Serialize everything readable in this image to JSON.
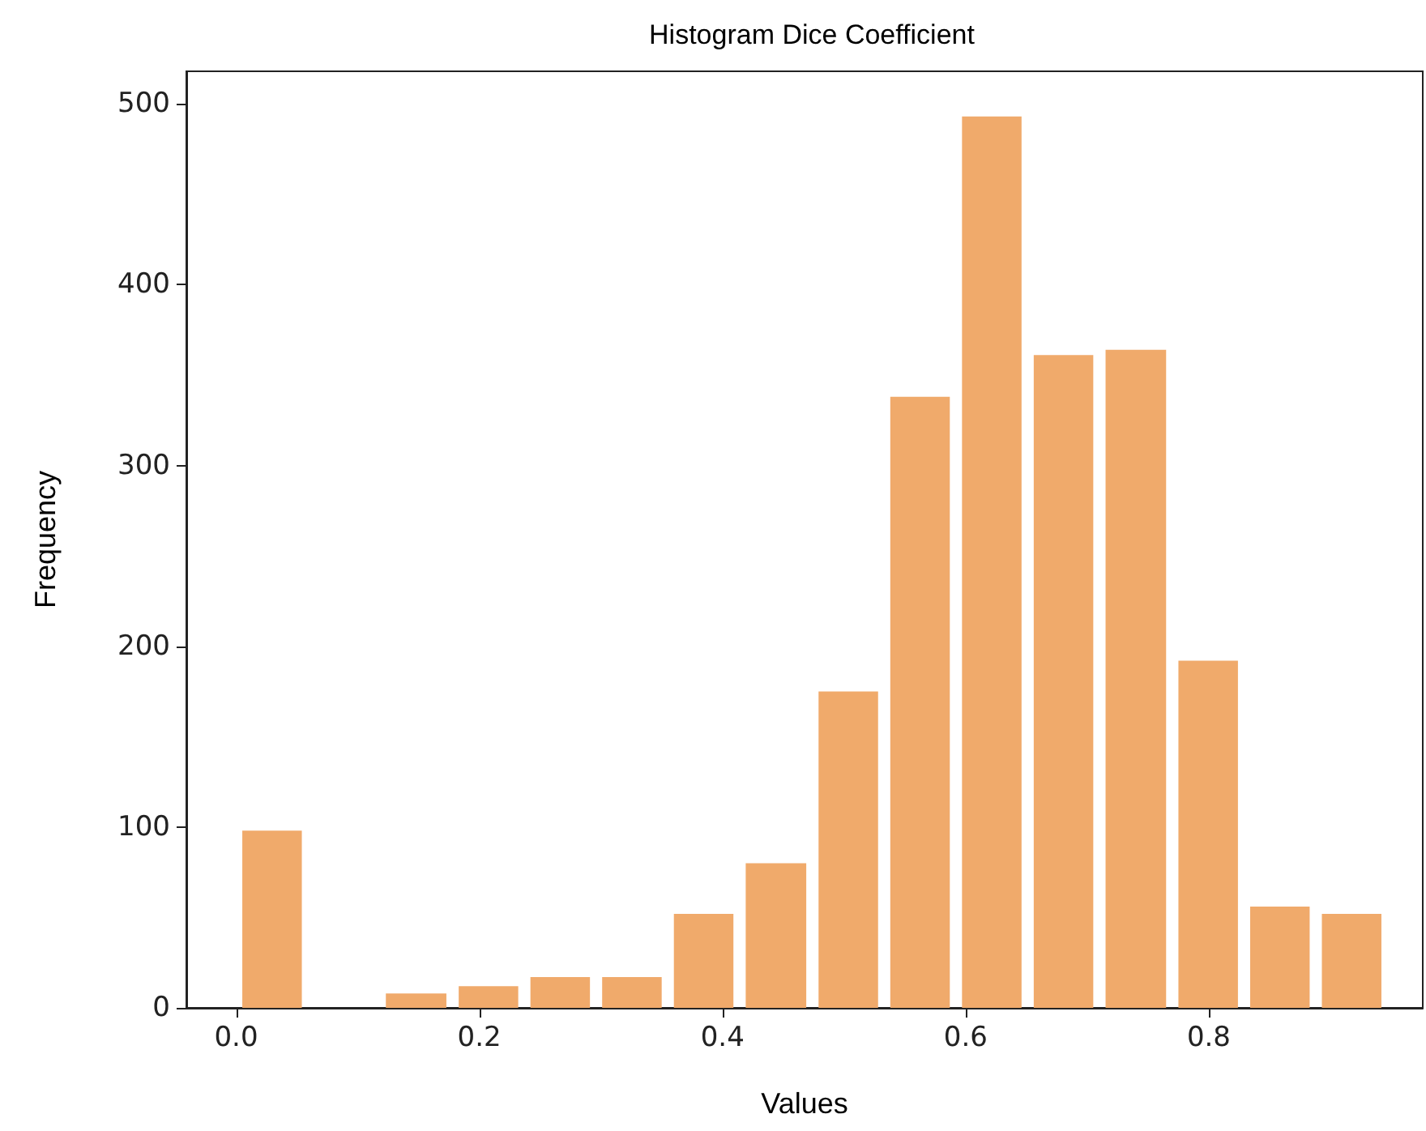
{
  "chart_data": {
    "type": "histogram",
    "title": "Histogram Dice Coefficient",
    "xlabel": "Values",
    "ylabel": "Frequency",
    "bins": [
      0,
      0.059,
      0.118,
      0.178,
      0.237,
      0.296,
      0.355,
      0.414,
      0.474,
      0.533,
      0.592,
      0.651,
      0.71,
      0.77,
      0.829,
      0.888,
      0.947
    ],
    "values": [
      98,
      0,
      8,
      12,
      17,
      17,
      52,
      80,
      175,
      338,
      493,
      361,
      364,
      192,
      56,
      52
    ],
    "color": "#f0aa6b",
    "xlim": [
      -0.041,
      0.976
    ],
    "xticks": [
      {
        "value": 0,
        "label": "0.0"
      },
      {
        "value": 0.2,
        "label": "0.2"
      },
      {
        "value": 0.4,
        "label": "0.4"
      },
      {
        "value": 0.6,
        "label": "0.6"
      },
      {
        "value": 0.8,
        "label": "0.8"
      }
    ],
    "ylim": [
      0,
      518
    ],
    "yticks": [
      0,
      100,
      200,
      300,
      400,
      500
    ],
    "grid": false,
    "legend": false
  }
}
